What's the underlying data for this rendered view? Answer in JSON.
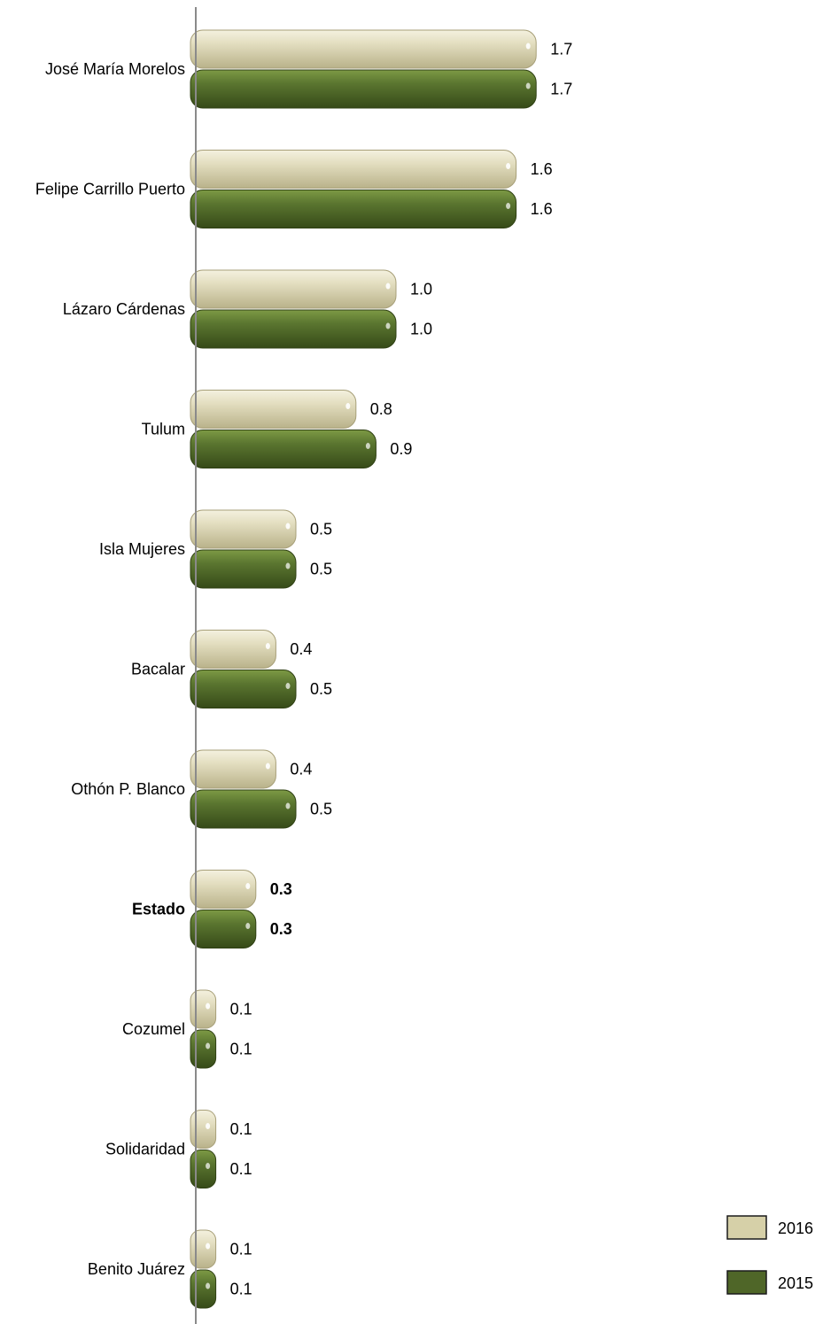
{
  "chart_data": {
    "type": "bar",
    "orientation": "horizontal",
    "categories": [
      "José María Morelos",
      "Felipe Carrillo Puerto",
      "Lázaro Cárdenas",
      "Tulum",
      "Isla Mujeres",
      "Bacalar",
      "Othón P. Blanco",
      "Estado",
      "Cozumel",
      "Solidaridad",
      "Benito Juárez"
    ],
    "highlighted_category": "Estado",
    "series": [
      {
        "name": "2016",
        "color": "#d6d0a8",
        "values": [
          1.7,
          1.6,
          1.0,
          0.8,
          0.5,
          0.4,
          0.4,
          0.3,
          0.1,
          0.1,
          0.1
        ],
        "labels": [
          "1.7",
          "1.6",
          "1.0",
          "0.8",
          "0.5",
          "0.4",
          "0.4",
          "0.3",
          "0.1",
          "0.1",
          "0.1"
        ]
      },
      {
        "name": "2015",
        "color": "#4f6628",
        "values": [
          1.7,
          1.6,
          1.0,
          0.9,
          0.5,
          0.5,
          0.5,
          0.3,
          0.1,
          0.1,
          0.1
        ],
        "labels": [
          "1.7",
          "1.6",
          "1.0",
          "0.9",
          "0.5",
          "0.5",
          "0.5",
          "0.3",
          "0.1",
          "0.1",
          "0.1"
        ]
      }
    ],
    "title": "",
    "xlabel": "",
    "ylabel": "",
    "xlim": [
      0,
      1.8
    ],
    "grid": false,
    "legend_position": "bottom-right"
  }
}
